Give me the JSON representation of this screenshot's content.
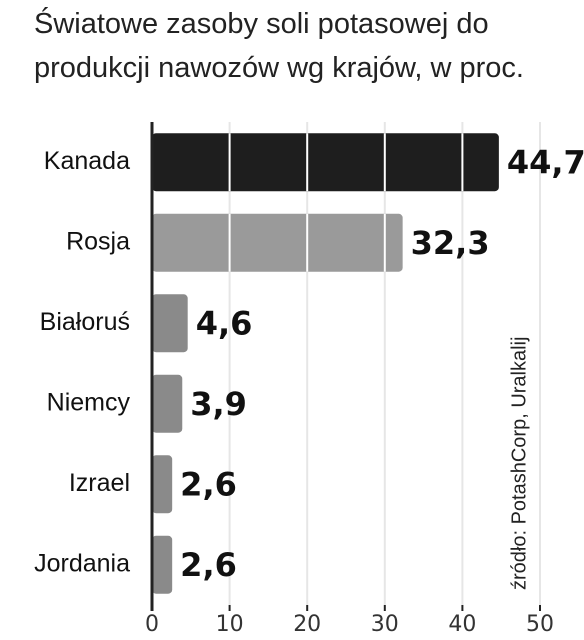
{
  "chart_data": {
    "type": "bar",
    "orientation": "horizontal",
    "title": "Światowe zasoby soli potasowej do produkcji nawozów wg krajów, w proc.",
    "source": "źródło: PotashCorp, Uralkalij",
    "categories": [
      "Kanada",
      "Rosja",
      "Białoruś",
      "Niemcy",
      "Izrael",
      "Jordania"
    ],
    "values": [
      44.7,
      32.3,
      4.6,
      3.9,
      2.6,
      2.6
    ],
    "value_labels": [
      "44,7",
      "32,3",
      "4,6",
      "3,9",
      "2,6",
      "2,6"
    ],
    "colors": [
      "#1e1e1e",
      "#9a9a9a",
      "#8a8a8a",
      "#8a8a8a",
      "#8a8a8a",
      "#8a8a8a"
    ],
    "xlim": [
      0,
      50
    ],
    "xticks": [
      0,
      10,
      20,
      30,
      40,
      50
    ],
    "grid": true
  }
}
